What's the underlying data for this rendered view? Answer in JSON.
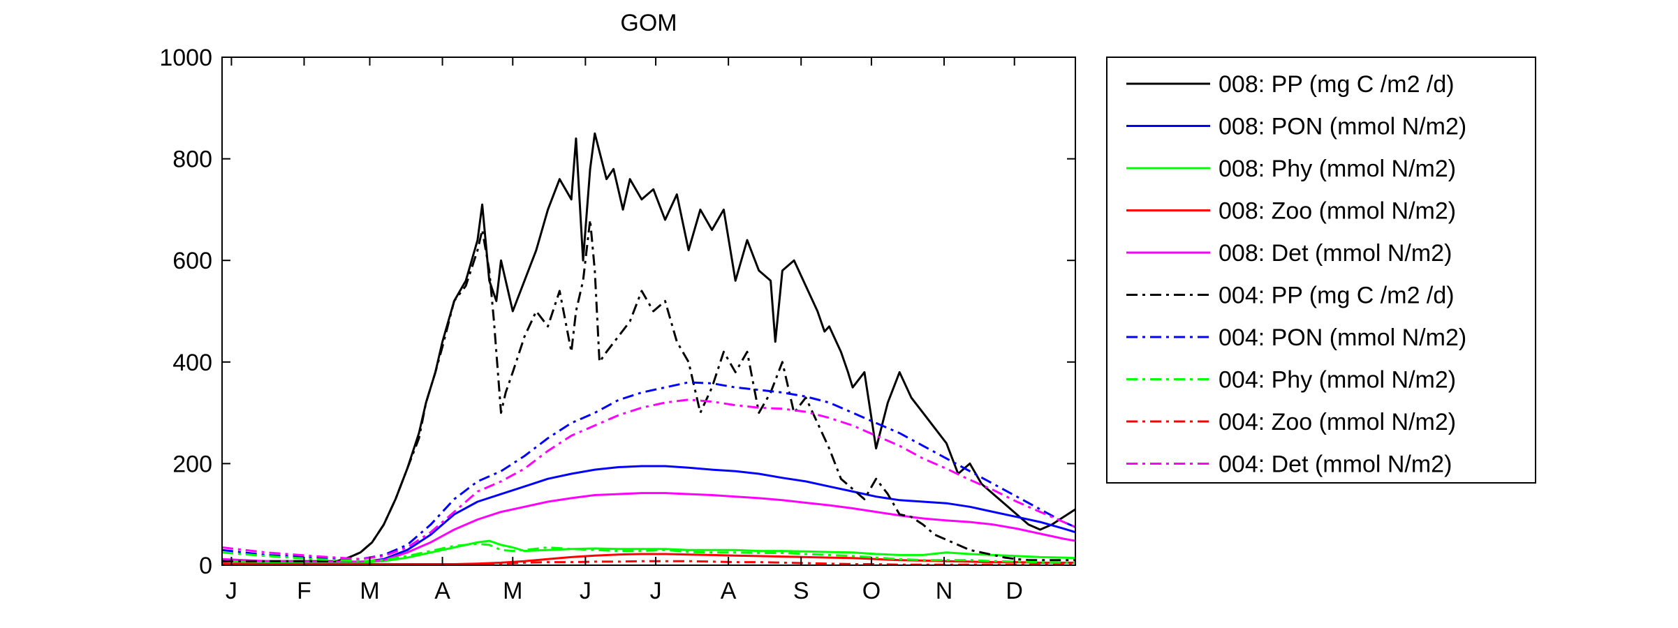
{
  "chart_data": {
    "type": "line",
    "title": "GOM",
    "xlabel": "",
    "ylabel": "",
    "ylim": [
      0,
      1000
    ],
    "xlim": [
      1,
      365
    ],
    "yticks": [
      0,
      200,
      400,
      600,
      800,
      1000
    ],
    "ytick_labels": [
      "0",
      "200",
      "400",
      "600",
      "800",
      "1000"
    ],
    "xticks": [
      {
        "label": "J",
        "day": 5
      },
      {
        "label": "F",
        "day": 36
      },
      {
        "label": "M",
        "day": 64
      },
      {
        "label": "A",
        "day": 95
      },
      {
        "label": "M",
        "day": 125
      },
      {
        "label": "J",
        "day": 156
      },
      {
        "label": "J",
        "day": 186
      },
      {
        "label": "A",
        "day": 217
      },
      {
        "label": "S",
        "day": 248
      },
      {
        "label": "O",
        "day": 278
      },
      {
        "label": "N",
        "day": 309
      },
      {
        "label": "D",
        "day": 339
      }
    ],
    "grid": false,
    "legend_position": "outside-right",
    "series": [
      {
        "name": "008: PP (mg C /m2 /d)",
        "color": "#000000",
        "dash": "solid",
        "x": [
          1,
          20,
          50,
          55,
          60,
          65,
          70,
          75,
          80,
          85,
          88,
          92,
          95,
          100,
          105,
          110,
          112,
          115,
          118,
          120,
          125,
          130,
          135,
          140,
          145,
          150,
          152,
          155,
          158,
          160,
          165,
          168,
          170,
          172,
          175,
          180,
          185,
          190,
          195,
          200,
          205,
          210,
          215,
          220,
          225,
          230,
          235,
          237,
          240,
          245,
          250,
          255,
          258,
          260,
          265,
          268,
          270,
          275,
          280,
          285,
          290,
          295,
          300,
          305,
          310,
          315,
          320,
          325,
          330,
          335,
          340,
          345,
          350,
          355,
          360,
          365
        ],
        "y": [
          8,
          8,
          8,
          15,
          25,
          45,
          80,
          130,
          190,
          260,
          320,
          380,
          440,
          520,
          560,
          640,
          710,
          560,
          520,
          600,
          500,
          560,
          620,
          700,
          760,
          720,
          840,
          600,
          780,
          850,
          760,
          780,
          740,
          700,
          760,
          720,
          740,
          680,
          730,
          620,
          700,
          660,
          700,
          560,
          640,
          580,
          560,
          440,
          580,
          600,
          550,
          500,
          460,
          470,
          420,
          380,
          350,
          380,
          230,
          320,
          380,
          330,
          300,
          270,
          240,
          180,
          200,
          160,
          140,
          120,
          100,
          80,
          70,
          80,
          95,
          110
        ]
      },
      {
        "name": "008: PON (mmol N/m2)",
        "color": "#0000ff",
        "dash": "solid",
        "x": [
          1,
          20,
          40,
          60,
          70,
          80,
          90,
          100,
          110,
          120,
          130,
          140,
          150,
          160,
          170,
          180,
          190,
          200,
          210,
          220,
          230,
          240,
          250,
          260,
          270,
          280,
          290,
          300,
          310,
          320,
          330,
          340,
          350,
          360,
          365
        ],
        "y": [
          8,
          6,
          6,
          6,
          12,
          30,
          60,
          100,
          125,
          140,
          155,
          170,
          180,
          188,
          193,
          195,
          195,
          192,
          188,
          185,
          180,
          172,
          165,
          155,
          145,
          135,
          128,
          125,
          122,
          115,
          105,
          95,
          85,
          72,
          65
        ]
      },
      {
        "name": "008: Phy (mmol N/m2)",
        "color": "#00ff00",
        "dash": "solid",
        "x": [
          1,
          20,
          40,
          60,
          70,
          80,
          90,
          100,
          110,
          115,
          120,
          125,
          130,
          140,
          150,
          160,
          170,
          180,
          190,
          200,
          210,
          220,
          230,
          240,
          250,
          260,
          270,
          280,
          290,
          300,
          310,
          320,
          330,
          340,
          350,
          360,
          365
        ],
        "y": [
          8,
          6,
          5,
          5,
          8,
          15,
          25,
          35,
          45,
          48,
          40,
          35,
          28,
          30,
          32,
          33,
          32,
          32,
          32,
          30,
          30,
          30,
          28,
          28,
          27,
          26,
          25,
          22,
          20,
          20,
          25,
          22,
          20,
          18,
          16,
          15,
          14
        ]
      },
      {
        "name": "008: Zoo (mmol N/m2)",
        "color": "#ff0000",
        "dash": "solid",
        "x": [
          1,
          20,
          40,
          60,
          80,
          100,
          110,
          120,
          130,
          140,
          150,
          160,
          170,
          180,
          190,
          200,
          210,
          220,
          230,
          240,
          250,
          260,
          270,
          280,
          290,
          300,
          310,
          320,
          330,
          340,
          350,
          360,
          365
        ],
        "y": [
          3,
          2,
          2,
          2,
          2,
          2,
          3,
          5,
          8,
          12,
          16,
          19,
          21,
          22,
          22,
          21,
          20,
          19,
          18,
          17,
          16,
          15,
          14,
          12,
          10,
          9,
          8,
          7,
          6,
          6,
          5,
          5,
          5
        ]
      },
      {
        "name": "008: Det (mmol N/m2)",
        "color": "#ff00ff",
        "dash": "solid",
        "x": [
          1,
          20,
          40,
          60,
          70,
          80,
          90,
          100,
          110,
          120,
          130,
          140,
          150,
          160,
          170,
          180,
          190,
          200,
          210,
          220,
          230,
          240,
          250,
          260,
          270,
          280,
          290,
          300,
          310,
          320,
          330,
          340,
          350,
          360,
          365
        ],
        "y": [
          12,
          8,
          7,
          7,
          10,
          25,
          45,
          70,
          90,
          105,
          115,
          125,
          132,
          138,
          140,
          142,
          142,
          140,
          138,
          135,
          132,
          128,
          123,
          118,
          112,
          105,
          98,
          92,
          88,
          85,
          80,
          72,
          62,
          52,
          48
        ]
      },
      {
        "name": "004: PP (mg C /m2 /d)",
        "color": "#000000",
        "dash": "dashdot",
        "x": [
          1,
          20,
          50,
          55,
          60,
          65,
          70,
          75,
          80,
          85,
          88,
          92,
          95,
          100,
          105,
          110,
          112,
          115,
          117,
          120,
          122,
          125,
          130,
          135,
          140,
          145,
          150,
          152,
          155,
          158,
          160,
          162,
          165,
          170,
          175,
          180,
          185,
          190,
          195,
          200,
          205,
          210,
          215,
          220,
          225,
          230,
          235,
          240,
          245,
          250,
          255,
          260,
          265,
          270,
          275,
          280,
          285,
          290,
          295,
          300,
          305,
          310,
          315,
          320,
          325,
          330,
          335,
          340,
          345,
          350,
          355,
          360,
          365
        ],
        "y": [
          8,
          8,
          8,
          15,
          25,
          45,
          80,
          130,
          190,
          250,
          320,
          380,
          430,
          520,
          550,
          620,
          660,
          580,
          480,
          300,
          340,
          380,
          450,
          500,
          470,
          540,
          420,
          500,
          560,
          680,
          580,
          400,
          420,
          450,
          480,
          540,
          500,
          520,
          440,
          400,
          300,
          350,
          420,
          380,
          420,
          300,
          340,
          400,
          300,
          330,
          280,
          230,
          170,
          150,
          130,
          170,
          140,
          100,
          95,
          80,
          60,
          50,
          40,
          30,
          25,
          20,
          15,
          12,
          10,
          10,
          10,
          10,
          10
        ]
      },
      {
        "name": "004: PON (mmol N/m2)",
        "color": "#0000ff",
        "dash": "dashdot",
        "x": [
          1,
          20,
          40,
          60,
          70,
          80,
          90,
          100,
          110,
          120,
          130,
          140,
          150,
          160,
          170,
          180,
          190,
          200,
          210,
          220,
          230,
          240,
          250,
          260,
          270,
          280,
          290,
          300,
          310,
          320,
          330,
          340,
          350,
          360,
          365
        ],
        "y": [
          30,
          20,
          15,
          12,
          20,
          40,
          80,
          130,
          165,
          185,
          215,
          250,
          280,
          300,
          325,
          340,
          350,
          360,
          358,
          350,
          345,
          340,
          332,
          320,
          300,
          280,
          260,
          235,
          210,
          185,
          160,
          135,
          110,
          85,
          75
        ]
      },
      {
        "name": "004: Phy (mmol N/m2)",
        "color": "#00ff00",
        "dash": "dashdot",
        "x": [
          1,
          20,
          40,
          60,
          70,
          80,
          90,
          100,
          110,
          115,
          120,
          125,
          130,
          140,
          150,
          160,
          170,
          180,
          190,
          200,
          210,
          220,
          230,
          240,
          250,
          260,
          270,
          280,
          290,
          300,
          310,
          320,
          330,
          340,
          350,
          360,
          365
        ],
        "y": [
          25,
          18,
          12,
          8,
          10,
          18,
          28,
          38,
          42,
          40,
          30,
          28,
          30,
          35,
          32,
          30,
          28,
          28,
          30,
          26,
          25,
          25,
          24,
          24,
          22,
          20,
          18,
          15,
          12,
          10,
          10,
          10,
          8,
          7,
          6,
          5,
          5
        ]
      },
      {
        "name": "004: Zoo (mmol N/m2)",
        "color": "#ff0000",
        "dash": "dashdot",
        "x": [
          1,
          20,
          40,
          60,
          80,
          100,
          110,
          120,
          125,
          130,
          140,
          150,
          160,
          170,
          180,
          190,
          200,
          210,
          220,
          230,
          240,
          250,
          260,
          270,
          280,
          290,
          300,
          310,
          320,
          330,
          340,
          350,
          360,
          365
        ],
        "y": [
          3,
          2,
          2,
          2,
          2,
          2,
          2,
          3,
          4,
          5,
          6,
          6,
          7,
          7,
          8,
          8,
          8,
          7,
          6,
          6,
          5,
          4,
          3,
          2,
          2,
          1,
          1,
          1,
          1,
          1,
          1,
          1,
          1,
          1
        ]
      },
      {
        "name": "004: Det (mmol N/m2)",
        "color": "#ff00ff",
        "dash": "dashdot",
        "x": [
          1,
          20,
          40,
          60,
          70,
          80,
          90,
          100,
          110,
          120,
          130,
          140,
          150,
          160,
          170,
          180,
          190,
          200,
          210,
          220,
          230,
          240,
          250,
          260,
          270,
          280,
          290,
          300,
          310,
          320,
          330,
          340,
          350,
          360,
          365
        ],
        "y": [
          35,
          25,
          18,
          12,
          18,
          35,
          65,
          105,
          145,
          165,
          190,
          225,
          255,
          275,
          295,
          310,
          320,
          326,
          322,
          315,
          310,
          308,
          302,
          290,
          275,
          255,
          235,
          210,
          190,
          168,
          148,
          125,
          105,
          85,
          75
        ]
      }
    ]
  }
}
